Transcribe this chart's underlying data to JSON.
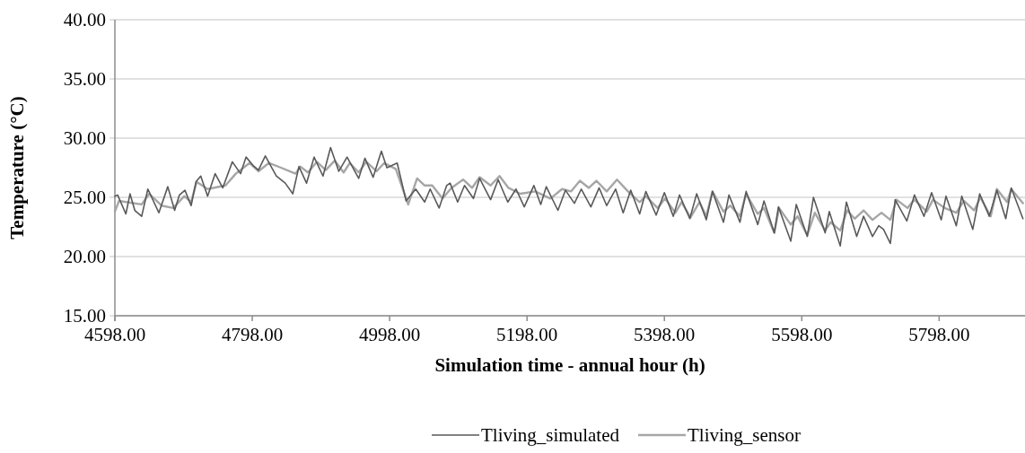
{
  "chart_data": {
    "type": "line",
    "xlabel": "Simulation time - annual hour (h)",
    "ylabel": "Temperature (°C)",
    "xlim": [
      4598,
      5923
    ],
    "xticks": [
      {
        "value": 4598,
        "label": "4598.00"
      },
      {
        "value": 4798,
        "label": "4798.00"
      },
      {
        "value": 4998,
        "label": "4998.00"
      },
      {
        "value": 5198,
        "label": "5198.00"
      },
      {
        "value": 5398,
        "label": "5398.00"
      },
      {
        "value": 5598,
        "label": "5598.00"
      },
      {
        "value": 5798,
        "label": "5798.00"
      }
    ],
    "ylim": [
      15,
      40
    ],
    "yticks": [
      {
        "value": 15,
        "label": "15.00"
      },
      {
        "value": 20,
        "label": "20.00"
      },
      {
        "value": 25,
        "label": "25.00"
      },
      {
        "value": 30,
        "label": "30.00"
      },
      {
        "value": 35,
        "label": "35.00"
      },
      {
        "value": 40,
        "label": "40.00"
      }
    ],
    "grid": "y",
    "legend": "bottom",
    "line_style": "solid",
    "marker": "none",
    "series": [
      {
        "name": "Tliving_simulated",
        "color": "#595959",
        "x": [
          4598,
          4602,
          4614,
          4620,
          4627,
          4637,
          4646,
          4662,
          4675,
          4685,
          4692,
          4700,
          4709,
          4716,
          4723,
          4733,
          4744,
          4755,
          4769,
          4781,
          4789,
          4799,
          4807,
          4817,
          4833,
          4846,
          4857,
          4866,
          4877,
          4888,
          4901,
          4912,
          4924,
          4936,
          4953,
          4962,
          4974,
          4986,
          4994,
          5009,
          5022,
          5036,
          5049,
          5057,
          5070,
          5081,
          5086,
          5097,
          5107,
          5120,
          5129,
          5145,
          5156,
          5170,
          5182,
          5194,
          5208,
          5218,
          5226,
          5243,
          5254,
          5267,
          5277,
          5291,
          5303,
          5314,
          5327,
          5338,
          5349,
          5362,
          5371,
          5386,
          5398,
          5411,
          5420,
          5435,
          5445,
          5459,
          5468,
          5484,
          5492,
          5508,
          5517,
          5534,
          5543,
          5558,
          5564,
          5582,
          5590,
          5606,
          5615,
          5632,
          5638,
          5654,
          5663,
          5678,
          5688,
          5701,
          5710,
          5717,
          5727,
          5734,
          5751,
          5762,
          5776,
          5787,
          5801,
          5808,
          5823,
          5831,
          5847,
          5857,
          5871,
          5882,
          5895,
          5903,
          5920
        ],
        "values": [
          25.1,
          25.2,
          23.6,
          25.3,
          23.9,
          23.4,
          25.7,
          23.7,
          25.9,
          23.9,
          25.2,
          25.6,
          24.3,
          26.3,
          26.8,
          25.1,
          27.0,
          25.8,
          28.0,
          27.0,
          28.4,
          27.7,
          27.3,
          28.5,
          26.8,
          26.2,
          25.3,
          27.6,
          26.2,
          28.4,
          26.8,
          29.2,
          27.2,
          28.4,
          26.6,
          28.3,
          26.7,
          28.9,
          27.5,
          27.9,
          24.7,
          25.7,
          24.6,
          25.7,
          24.1,
          26.0,
          26.2,
          24.6,
          26.0,
          24.9,
          26.6,
          24.8,
          26.5,
          24.6,
          25.7,
          24.2,
          26.0,
          24.4,
          25.9,
          23.9,
          25.6,
          24.5,
          25.7,
          24.2,
          25.8,
          24.3,
          25.7,
          23.7,
          25.6,
          23.6,
          25.5,
          23.5,
          25.4,
          23.4,
          25.2,
          23.2,
          25.3,
          23.1,
          25.5,
          22.9,
          25.2,
          22.9,
          25.5,
          22.7,
          24.7,
          22.0,
          24.2,
          21.3,
          24.4,
          21.7,
          25.0,
          22.0,
          23.8,
          20.9,
          24.6,
          21.7,
          23.4,
          21.7,
          22.6,
          22.3,
          21.1,
          24.8,
          23.0,
          25.2,
          23.4,
          25.4,
          23.1,
          25.1,
          22.6,
          25.1,
          22.3,
          25.3,
          23.4,
          25.6,
          23.2,
          25.8,
          23.2
        ]
      },
      {
        "name": "Tliving_sensor",
        "color": "#a6a6a6",
        "x": [
          4598,
          4604,
          4637,
          4648,
          4666,
          4683,
          4699,
          4709,
          4717,
          4733,
          4759,
          4774,
          4794,
          4807,
          4822,
          4840,
          4861,
          4868,
          4879,
          4892,
          4905,
          4918,
          4931,
          4940,
          4953,
          4964,
          4979,
          4990,
          5007,
          5025,
          5038,
          5049,
          5060,
          5075,
          5088,
          5105,
          5118,
          5129,
          5145,
          5158,
          5171,
          5188,
          5210,
          5232,
          5249,
          5262,
          5275,
          5288,
          5299,
          5314,
          5329,
          5345,
          5362,
          5371,
          5388,
          5399,
          5414,
          5423,
          5436,
          5449,
          5459,
          5468,
          5484,
          5494,
          5508,
          5517,
          5534,
          5543,
          5558,
          5565,
          5582,
          5592,
          5606,
          5617,
          5632,
          5640,
          5654,
          5664,
          5675,
          5688,
          5701,
          5714,
          5727,
          5736,
          5752,
          5762,
          5780,
          5789,
          5806,
          5823,
          5834,
          5849,
          5858,
          5873,
          5882,
          5897,
          5903,
          5920
        ],
        "values": [
          23.8,
          24.7,
          24.4,
          25.3,
          24.3,
          24.1,
          25.1,
          24.6,
          26.3,
          25.7,
          26.0,
          27.0,
          27.9,
          27.2,
          27.9,
          27.5,
          27.0,
          27.6,
          27.1,
          28.0,
          27.3,
          28.1,
          27.1,
          27.9,
          27.1,
          28.0,
          27.2,
          27.9,
          27.4,
          24.4,
          26.6,
          26.0,
          26.0,
          24.9,
          25.8,
          26.5,
          25.8,
          26.7,
          26.0,
          26.8,
          25.8,
          25.3,
          25.5,
          24.9,
          25.7,
          25.5,
          26.4,
          25.8,
          26.4,
          25.5,
          26.5,
          25.5,
          24.6,
          25.1,
          24.1,
          24.9,
          23.7,
          24.6,
          23.3,
          24.6,
          23.4,
          25.5,
          23.8,
          24.3,
          23.4,
          25.3,
          23.6,
          24.1,
          22.0,
          24.1,
          22.7,
          23.4,
          21.8,
          23.7,
          22.2,
          22.9,
          22.2,
          23.9,
          23.2,
          23.9,
          23.1,
          23.7,
          23.1,
          24.8,
          24.1,
          24.8,
          23.8,
          24.8,
          24.1,
          23.7,
          24.7,
          23.9,
          25.0,
          23.4,
          25.7,
          24.6,
          25.7,
          24.5
        ]
      }
    ]
  }
}
